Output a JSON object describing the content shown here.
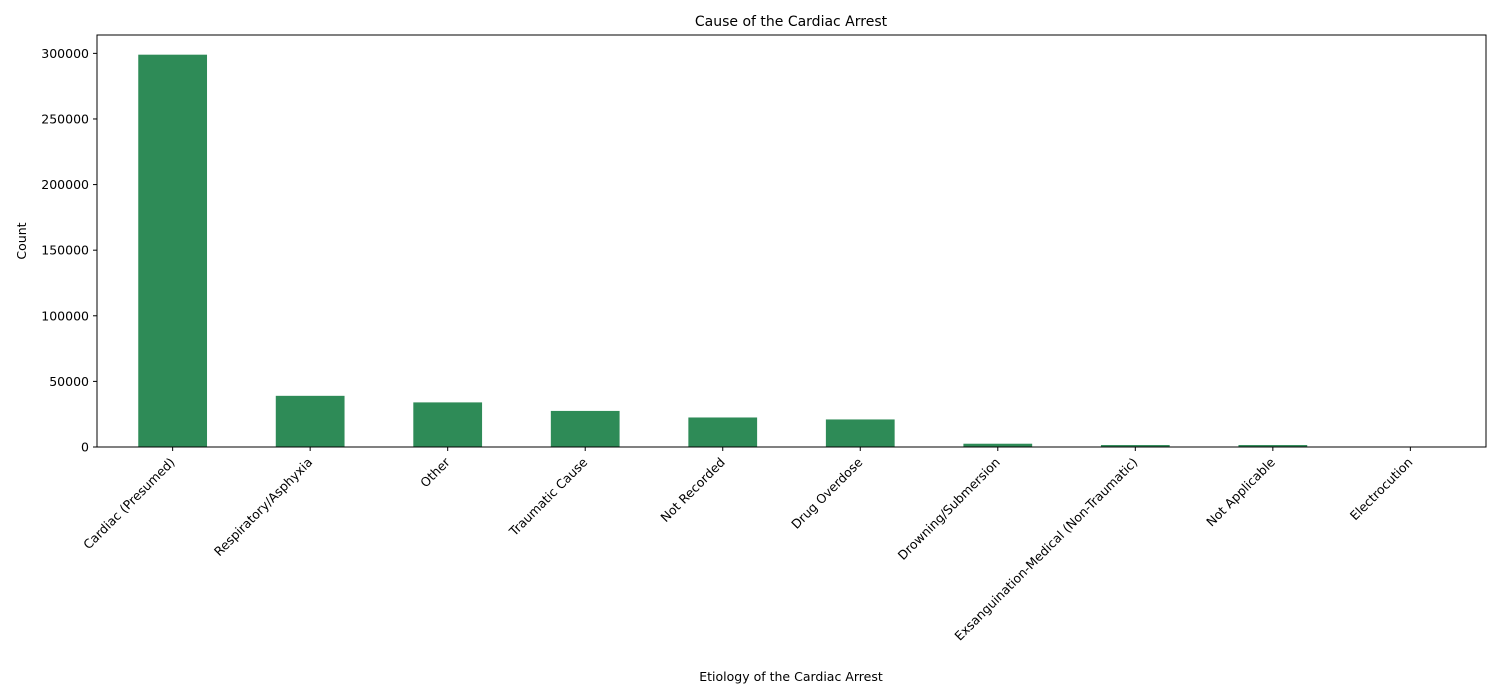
{
  "chart_data": {
    "type": "bar",
    "title": "Cause of the Cardiac Arrest",
    "xlabel": "Etiology of the Cardiac Arrest",
    "ylabel": "Count",
    "categories": [
      "Cardiac (Presumed)",
      "Respiratory/Asphyxia",
      "Other",
      "Traumatic Cause",
      "Not Recorded",
      "Drug Overdose",
      "Drowning/Submersion",
      "Exsanguination-Medical (Non-Traumatic)",
      "Not Applicable",
      "Electrocution"
    ],
    "values": [
      299000,
      39000,
      34000,
      27500,
      22500,
      21000,
      2500,
      1500,
      1500,
      300
    ],
    "ylim": [
      0,
      314000
    ],
    "yticks": [
      0,
      50000,
      100000,
      150000,
      200000,
      250000,
      300000
    ],
    "ytick_labels": [
      "0",
      "50000",
      "100000",
      "150000",
      "200000",
      "250000",
      "300000"
    ],
    "bar_color": "#2e8b57",
    "grid": false,
    "legend": false
  }
}
